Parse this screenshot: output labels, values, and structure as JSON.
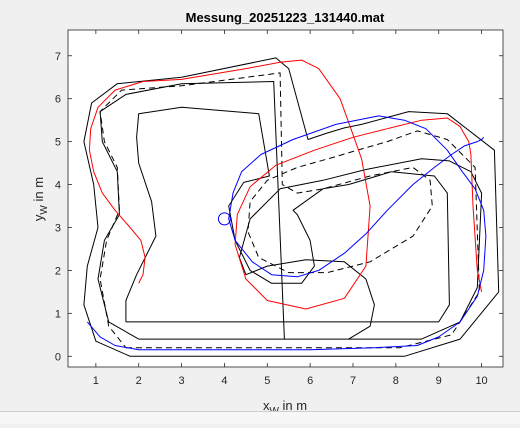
{
  "chart_data": {
    "type": "line",
    "title": "Messung_20251223_131440.mat",
    "xlabel": "x",
    "xlabel_sub": "W",
    "xlabel_unit": " in m",
    "ylabel": "y",
    "ylabel_sub": "W",
    "ylabel_unit": " in m",
    "xlim": [
      0.35,
      10.5
    ],
    "ylim": [
      -0.25,
      7.6
    ],
    "xticks": [
      1,
      2,
      3,
      4,
      5,
      6,
      7,
      8,
      9,
      10
    ],
    "yticks": [
      0,
      1,
      2,
      3,
      4,
      5,
      6,
      7
    ],
    "grid": false,
    "series": [
      {
        "color": "#000000",
        "style": "solid",
        "x": [
          1.8,
          3.2,
          5.85,
          8.2,
          9.5,
          10.4,
          10.3,
          9.2,
          8.3,
          7.75,
          7.2,
          6.8,
          6.4,
          5.95,
          5.5,
          5.2,
          3.0,
          1.5,
          0.9,
          0.72,
          0.95,
          1.05,
          0.8,
          0.72,
          1.0,
          1.8
        ],
        "y": [
          0.0,
          0.0,
          0.0,
          0.0,
          0.4,
          1.5,
          4.8,
          5.65,
          5.7,
          5.55,
          5.4,
          5.32,
          5.2,
          5.05,
          6.7,
          6.95,
          6.5,
          6.35,
          5.9,
          5.0,
          4.0,
          3.0,
          2.1,
          1.2,
          0.35,
          0.0
        ]
      },
      {
        "color": "#000000",
        "style": "solid",
        "x": [
          2.0,
          3.2,
          4.9,
          5.9,
          6.9,
          7.4,
          7.5,
          7.3,
          6.8,
          5.9,
          5.0,
          4.5,
          4.35,
          4.6,
          5.3,
          6.3,
          7.3,
          8.6,
          9.25,
          9.75,
          10.0,
          9.9,
          9.5,
          8.6,
          7.7,
          6.8,
          6.2,
          5.8,
          5.4,
          5.15,
          3.0,
          1.7,
          1.1,
          1.15,
          1.5,
          1.55,
          1.2,
          1.05,
          1.3,
          2.0
        ],
        "y": [
          0.4,
          0.4,
          0.4,
          0.4,
          0.4,
          0.7,
          1.2,
          1.8,
          2.2,
          2.25,
          2.1,
          1.9,
          2.3,
          3.2,
          3.9,
          4.1,
          4.35,
          4.6,
          4.55,
          4.3,
          3.8,
          1.6,
          0.8,
          0.4,
          0.4,
          0.4,
          0.4,
          0.4,
          0.4,
          6.4,
          6.35,
          6.1,
          5.7,
          5.0,
          4.3,
          3.3,
          2.7,
          1.8,
          0.8,
          0.4
        ]
      },
      {
        "color": "#000000",
        "style": "solid",
        "x": [
          1.7,
          3.2,
          6.2,
          9.0,
          9.25,
          9.2,
          8.9,
          7.9,
          6.9,
          6.3,
          5.6,
          5.7,
          6.0,
          6.1,
          5.8,
          5.1,
          4.6,
          4.25,
          4.1,
          4.45,
          5.05,
          4.8,
          3.0,
          2.0,
          1.95,
          2.0,
          2.3,
          2.4,
          1.95,
          1.7,
          1.7
        ],
        "y": [
          0.8,
          0.8,
          0.8,
          0.8,
          1.2,
          3.8,
          4.2,
          4.3,
          4.0,
          3.9,
          3.4,
          3.3,
          2.7,
          2.1,
          1.7,
          1.7,
          2.0,
          2.7,
          3.5,
          4.05,
          4.2,
          5.65,
          5.8,
          5.65,
          5.1,
          4.5,
          3.6,
          2.8,
          1.9,
          1.3,
          0.8
        ]
      },
      {
        "color": "#000000",
        "style": "dashed",
        "x": [
          1.7,
          3.2,
          5.85,
          8.1,
          9.3,
          9.95,
          9.85,
          9.2,
          8.5,
          7.8,
          7.1,
          6.6,
          5.7,
          5.0,
          4.6,
          4.55,
          4.8,
          5.5,
          6.4,
          7.4,
          8.4,
          8.85,
          8.8,
          8.4,
          7.4,
          6.3,
          5.7,
          5.35,
          5.3,
          3.0,
          1.6,
          1.1,
          1.2,
          1.5,
          1.55,
          1.25,
          1.1,
          1.3,
          1.7
        ],
        "y": [
          0.2,
          0.2,
          0.2,
          0.2,
          0.5,
          1.5,
          4.4,
          5.05,
          5.25,
          5.0,
          4.8,
          4.65,
          4.4,
          4.1,
          3.6,
          2.9,
          2.3,
          1.95,
          1.95,
          2.2,
          2.8,
          3.5,
          4.1,
          4.4,
          4.2,
          3.9,
          3.8,
          4.0,
          6.6,
          6.3,
          6.2,
          5.7,
          5.0,
          4.4,
          3.4,
          2.7,
          1.8,
          0.7,
          0.2
        ]
      },
      {
        "color": "#ff0000",
        "style": "solid",
        "x": [
          2.0,
          2.1,
          2.15,
          2.05,
          1.8,
          1.45,
          1.15,
          0.95,
          0.85,
          0.88,
          1.05,
          1.45,
          2.1,
          3.0,
          4.5,
          5.3,
          5.8,
          6.2,
          6.7,
          6.95,
          7.2,
          7.4,
          7.3,
          6.8,
          5.9,
          5.0,
          4.5,
          4.25,
          4.3,
          4.6,
          5.2,
          6.1,
          7.0,
          7.8,
          8.6,
          9.2,
          9.5,
          9.7,
          9.75,
          9.8,
          9.9,
          10.0
        ],
        "y": [
          1.7,
          1.9,
          2.3,
          2.7,
          3.0,
          3.4,
          3.8,
          4.3,
          4.8,
          5.3,
          5.8,
          6.2,
          6.4,
          6.45,
          6.7,
          6.85,
          6.9,
          6.7,
          6.0,
          5.3,
          4.6,
          3.5,
          2.1,
          1.35,
          1.1,
          1.3,
          1.8,
          2.6,
          3.3,
          3.95,
          4.45,
          4.8,
          5.1,
          5.3,
          5.5,
          5.55,
          5.35,
          5.0,
          4.7,
          3.5,
          2.0,
          1.5
        ]
      },
      {
        "color": "#0000ff",
        "style": "solid",
        "x": [
          0.8,
          1.1,
          1.45,
          2.0,
          3.0,
          4.5,
          6.0,
          7.5,
          8.5,
          9.0,
          9.5,
          9.9,
          10.05,
          10.1,
          10.05,
          9.85,
          9.55,
          9.2,
          8.7,
          8.2,
          7.6,
          6.6,
          5.6,
          4.85,
          4.4,
          4.2,
          4.1,
          4.25,
          4.65,
          5.1,
          5.7,
          6.2,
          6.8,
          7.3,
          7.8,
          8.4,
          8.9,
          9.3,
          9.6,
          9.9,
          10.0,
          10.05
        ],
        "y": [
          0.8,
          0.45,
          0.25,
          0.15,
          0.15,
          0.15,
          0.15,
          0.2,
          0.25,
          0.45,
          0.8,
          1.4,
          2.0,
          2.8,
          3.4,
          3.9,
          4.3,
          4.8,
          5.3,
          5.5,
          5.6,
          5.4,
          5.05,
          4.7,
          4.3,
          3.8,
          3.2,
          2.7,
          2.2,
          1.9,
          1.85,
          2.0,
          2.4,
          2.85,
          3.4,
          4.0,
          4.4,
          4.7,
          4.9,
          5.0,
          5.05,
          5.1
        ]
      }
    ],
    "markers": [
      {
        "shape": "circle",
        "x": 4.0,
        "y": 3.2,
        "color": "#0000ff"
      }
    ]
  }
}
